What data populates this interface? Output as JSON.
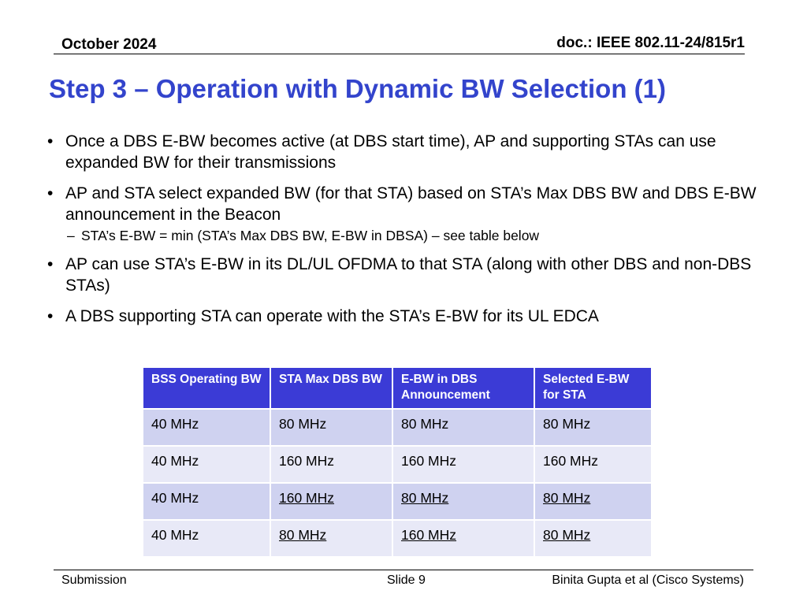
{
  "header": {
    "date": "October 2024",
    "doc_id": "doc.: IEEE 802.11-24/815r1"
  },
  "title": "Step 3 – Operation with Dynamic BW Selection (1)",
  "bullets": [
    {
      "level": 1,
      "text": "Once a DBS E-BW becomes active (at DBS start time), AP and supporting STAs can use expanded BW for their transmissions"
    },
    {
      "level": 1,
      "text": "AP and STA select expanded BW (for that STA) based on STA’s Max DBS BW and DBS E-BW announcement in the Beacon"
    },
    {
      "level": 2,
      "text": "STA’s E-BW = min (STA’s Max DBS BW, E-BW in DBSA) – see table below"
    },
    {
      "level": 1,
      "text": "AP can use STA’s E-BW in its DL/UL OFDMA to that STA (along with other DBS and non-DBS STAs)"
    },
    {
      "level": 1,
      "text": "A DBS supporting STA can operate with the STA’s E-BW for its UL EDCA"
    }
  ],
  "table": {
    "headers": [
      "BSS Operating BW",
      "STA Max DBS BW",
      "E-BW in DBS Announcement",
      "Selected E-BW for STA"
    ],
    "rows": [
      [
        "40 MHz",
        "80 MHz",
        "80 MHz",
        "80 MHz"
      ],
      [
        "40 MHz",
        "160 MHz",
        "160 MHz",
        "160 MHz"
      ],
      [
        "40 MHz",
        "160 MHz",
        "80 MHz",
        "80 MHz"
      ],
      [
        "40 MHz",
        "80 MHz",
        "160 MHz",
        "80 MHz"
      ]
    ],
    "header_color": "#3b3bd6",
    "row_colors": [
      "#cfd2f0",
      "#e8e9f7"
    ]
  },
  "footer": {
    "left": "Submission",
    "center": "Slide 9",
    "right": "Binita Gupta et al (Cisco Systems)"
  },
  "colors": {
    "title": "#3344cc"
  }
}
